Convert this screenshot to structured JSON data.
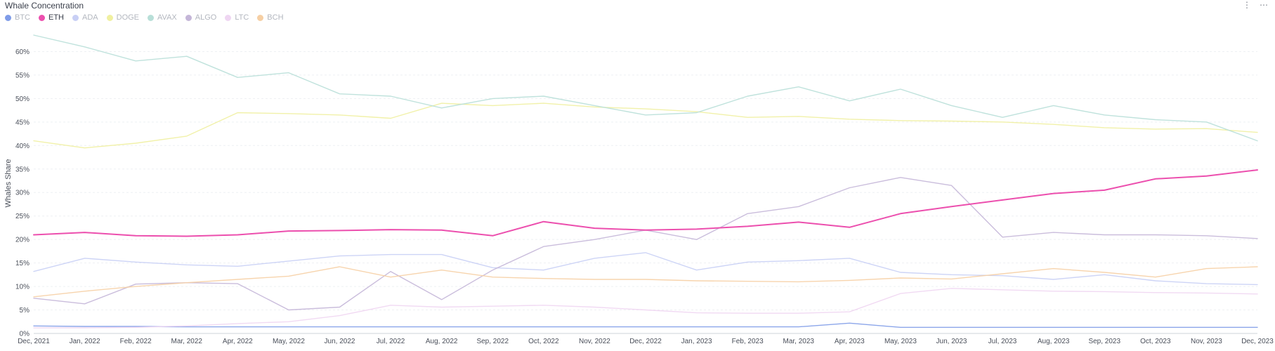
{
  "header": {
    "title": "Whale Concentration",
    "info_icon": "info-icon",
    "more_icon": "more-icon"
  },
  "chart_data": {
    "type": "line",
    "title": "Whale Concentration",
    "ylabel": "Whales Share",
    "xlabel": "",
    "ylim": [
      0,
      65
    ],
    "yticks": [
      "0%",
      "5%",
      "10%",
      "15%",
      "20%",
      "25%",
      "30%",
      "35%",
      "40%",
      "45%",
      "50%",
      "55%",
      "60%"
    ],
    "xticks": [
      "Dec, 2021",
      "Jan, 2022",
      "Feb, 2022",
      "Mar, 2022",
      "Apr, 2022",
      "May, 2022",
      "Jun, 2022",
      "Jul, 2022",
      "Aug, 2022",
      "Sep, 2022",
      "Oct, 2022",
      "Nov, 2022",
      "Dec, 2022",
      "Jan, 2023",
      "Feb, 2023",
      "Mar, 2023",
      "Apr, 2023",
      "May, 2023",
      "Jun, 2023",
      "Jul, 2023",
      "Aug, 2023",
      "Sep, 2023",
      "Oct, 2023",
      "Nov, 2023",
      "Dec, 2023"
    ],
    "grid": true,
    "legend_position": "top-left",
    "series": [
      {
        "name": "BTC",
        "color": "#7f9ce8",
        "active": false,
        "values": [
          1.6,
          1.5,
          1.5,
          1.4,
          1.4,
          1.4,
          1.4,
          1.4,
          1.4,
          1.4,
          1.4,
          1.4,
          1.4,
          1.4,
          1.4,
          1.4,
          2.2,
          1.3,
          1.3,
          1.3,
          1.3,
          1.3,
          1.3,
          1.3,
          1.3
        ]
      },
      {
        "name": "ETH",
        "color": "#ec4fae",
        "active": true,
        "values": [
          21.0,
          21.5,
          20.8,
          20.7,
          21.0,
          21.8,
          21.9,
          22.1,
          22.0,
          20.8,
          23.8,
          22.4,
          22.0,
          22.2,
          22.8,
          23.7,
          22.6,
          25.5,
          27.0,
          28.4,
          29.8,
          30.5,
          32.9,
          33.5,
          34.8
        ]
      },
      {
        "name": "ADA",
        "color": "#c8cff5",
        "active": false,
        "values": [
          13.2,
          16.0,
          15.2,
          14.6,
          14.3,
          15.4,
          16.5,
          16.8,
          16.8,
          14.0,
          13.5,
          16.0,
          17.2,
          13.5,
          15.2,
          15.5,
          16.0,
          13.0,
          12.5,
          12.3,
          11.5,
          12.5,
          11.2,
          10.6,
          10.4
        ]
      },
      {
        "name": "DOGE",
        "color": "#f0f0a0",
        "active": false,
        "values": [
          41.0,
          39.5,
          40.5,
          42.0,
          47.0,
          46.8,
          46.5,
          45.8,
          49.0,
          48.5,
          49.0,
          48.2,
          47.8,
          47.2,
          46.0,
          46.2,
          45.6,
          45.3,
          45.2,
          45.0,
          44.5,
          43.8,
          43.5,
          43.6,
          42.8
        ]
      },
      {
        "name": "AVAX",
        "color": "#b8dfd8",
        "active": false,
        "values": [
          63.5,
          61.0,
          58.0,
          59.0,
          54.5,
          55.5,
          51.0,
          50.5,
          48.0,
          50.0,
          50.5,
          48.5,
          46.5,
          47.0,
          50.5,
          52.5,
          49.5,
          52.0,
          48.5,
          46.0,
          48.5,
          46.5,
          45.5,
          45.0,
          41.0
        ]
      },
      {
        "name": "ALGO",
        "color": "#c4b6d8",
        "active": false,
        "values": [
          7.5,
          6.3,
          10.5,
          10.8,
          10.6,
          5.0,
          5.6,
          13.2,
          7.2,
          13.5,
          18.5,
          20.0,
          22.0,
          20.0,
          25.5,
          27.0,
          31.0,
          33.2,
          31.5,
          20.5,
          21.5,
          21.0,
          21.0,
          20.8,
          20.2
        ]
      },
      {
        "name": "LTC",
        "color": "#efd6f2",
        "active": false,
        "values": [
          1.2,
          1.2,
          1.3,
          1.6,
          2.1,
          2.5,
          3.8,
          6.0,
          5.6,
          5.8,
          6.0,
          5.6,
          5.0,
          4.4,
          4.3,
          4.3,
          4.6,
          8.5,
          9.6,
          9.3,
          9.0,
          8.9,
          8.7,
          8.6,
          8.4
        ]
      },
      {
        "name": "BCH",
        "color": "#f6cfa4",
        "active": false,
        "values": [
          7.8,
          9.0,
          10.0,
          10.8,
          11.5,
          12.2,
          14.2,
          12.0,
          13.5,
          12.0,
          11.7,
          11.5,
          11.5,
          11.2,
          11.1,
          11.0,
          11.3,
          11.8,
          11.6,
          12.7,
          13.8,
          13.0,
          12.0,
          13.8,
          14.2
        ]
      }
    ]
  }
}
